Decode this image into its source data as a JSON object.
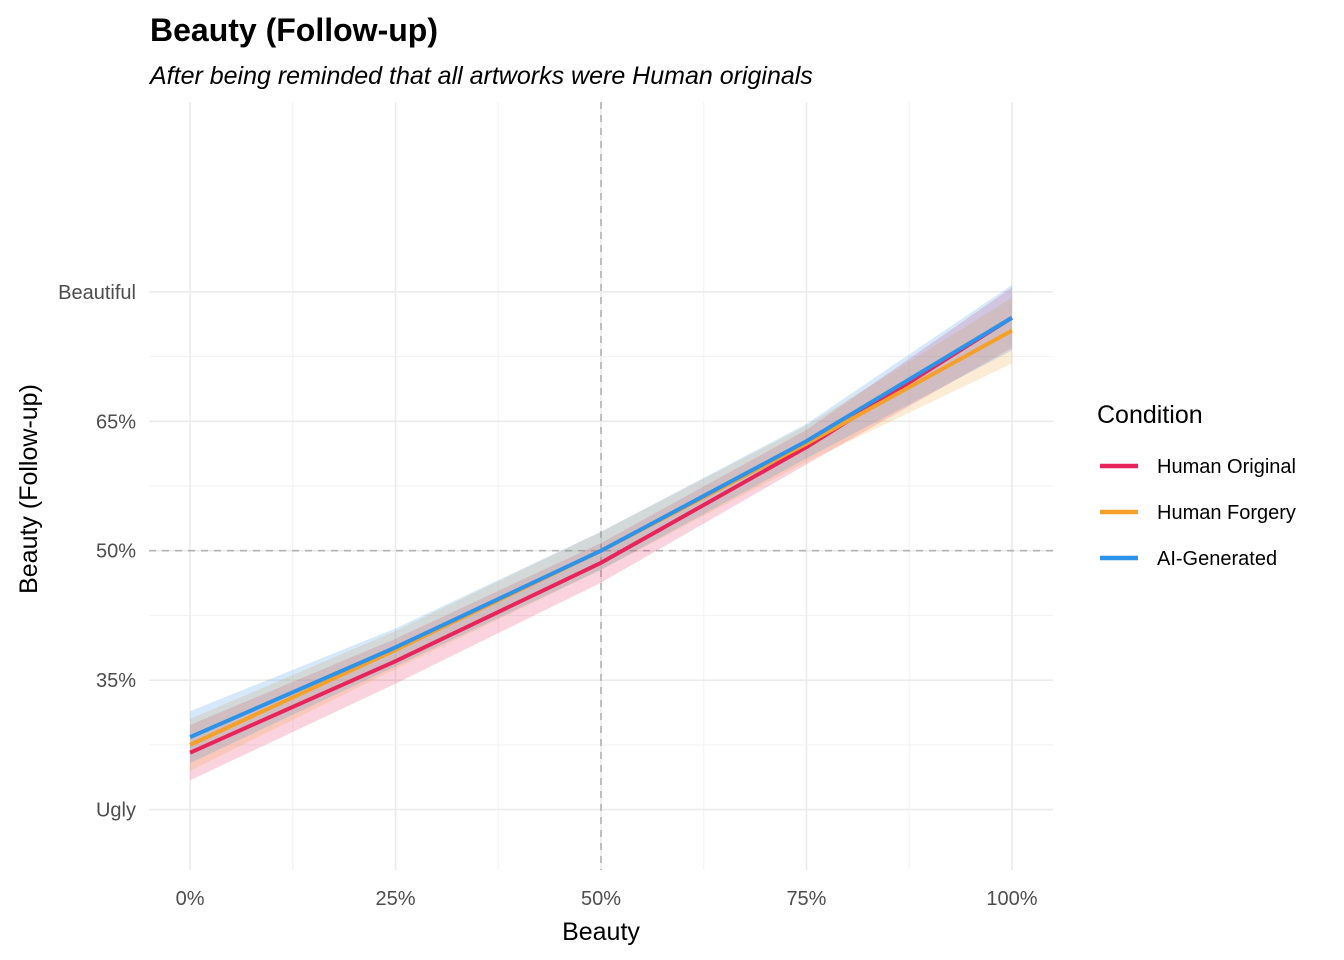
{
  "chart_data": {
    "type": "line",
    "title": "Beauty (Follow-up)",
    "subtitle": "After being reminded that all artworks were Human originals",
    "xlabel": "Beauty",
    "ylabel": "Beauty (Follow-up)",
    "xlim": [
      -0.05,
      1.05
    ],
    "ylim": [
      0.13,
      1.02
    ],
    "x_ticks": [
      {
        "value": 0,
        "label": "0%"
      },
      {
        "value": 0.25,
        "label": "25%"
      },
      {
        "value": 0.5,
        "label": "50%"
      },
      {
        "value": 0.75,
        "label": "75%"
      },
      {
        "value": 1,
        "label": "100%"
      }
    ],
    "y_ticks": [
      {
        "value": 0.2,
        "label": "Ugly"
      },
      {
        "value": 0.35,
        "label": "35%"
      },
      {
        "value": 0.5,
        "label": "50%"
      },
      {
        "value": 0.65,
        "label": "65%"
      },
      {
        "value": 0.8,
        "label": "Beautiful"
      }
    ],
    "reference_lines": {
      "x": 0.5,
      "y": 0.5
    },
    "grid": true,
    "legend": {
      "title": "Condition",
      "position": "right"
    },
    "x": [
      0,
      0.25,
      0.5,
      0.75,
      1
    ],
    "series": [
      {
        "name": "Human Original",
        "color": "#E8245A",
        "values": [
          0.266,
          0.372,
          0.486,
          0.62,
          0.77
        ],
        "lower": [
          0.234,
          0.346,
          0.463,
          0.6,
          0.735
        ],
        "upper": [
          0.298,
          0.398,
          0.509,
          0.64,
          0.805
        ]
      },
      {
        "name": "Human Forgery",
        "color": "#F5A02B",
        "values": [
          0.275,
          0.385,
          0.5,
          0.624,
          0.755
        ],
        "lower": [
          0.245,
          0.363,
          0.478,
          0.603,
          0.717
        ],
        "upper": [
          0.305,
          0.407,
          0.522,
          0.645,
          0.793
        ]
      },
      {
        "name": "AI-Generated",
        "color": "#2E93E8",
        "values": [
          0.284,
          0.388,
          0.5,
          0.627,
          0.77
        ],
        "lower": [
          0.254,
          0.366,
          0.478,
          0.607,
          0.732
        ],
        "upper": [
          0.314,
          0.41,
          0.522,
          0.647,
          0.808
        ]
      }
    ]
  }
}
